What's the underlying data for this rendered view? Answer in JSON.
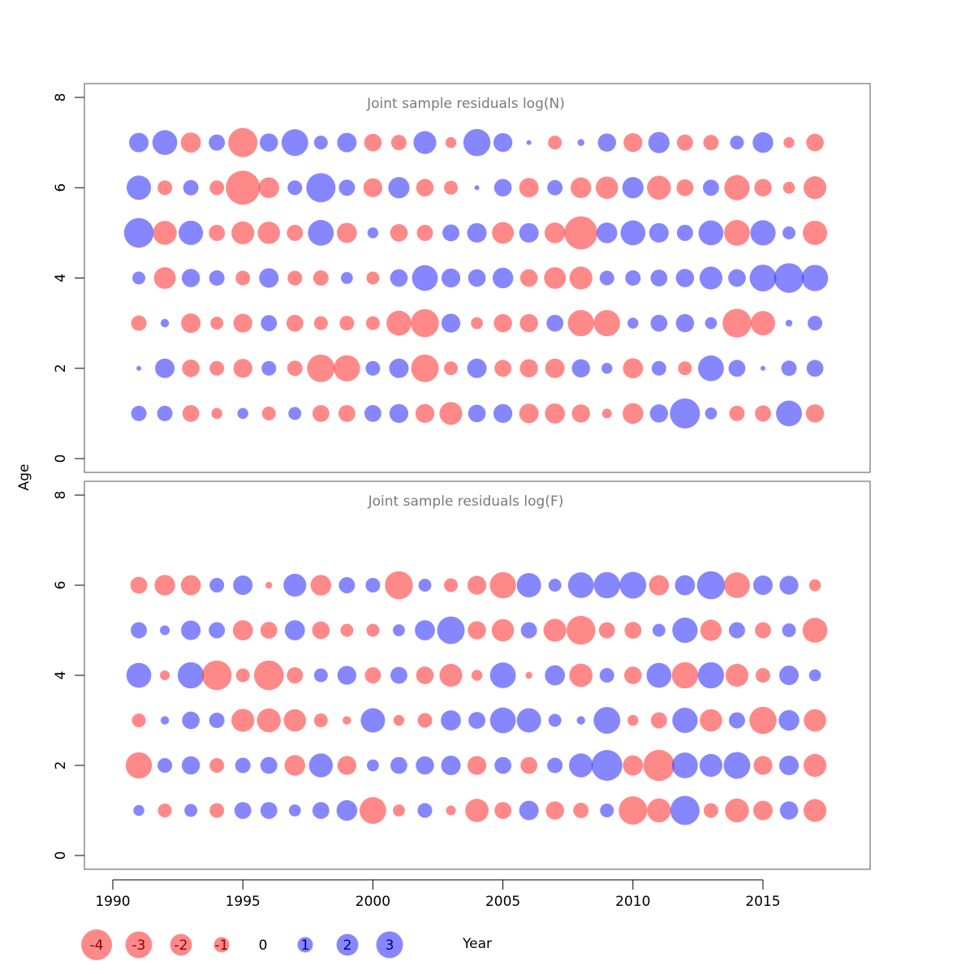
{
  "colors": {
    "negative": "#ff4040",
    "positive": "#3c3cff",
    "frame": "#555555",
    "title": "#7a7a7a"
  },
  "chart_data": [
    {
      "type": "scatter",
      "subtype": "bubble",
      "title": "Joint sample residuals log(N)",
      "xlabel": "Year",
      "ylabel": "Age",
      "xlim": [
        1989,
        2019
      ],
      "ylim": [
        -0.4,
        8.2
      ],
      "x_ticks": [
        1990,
        1995,
        2000,
        2005,
        2010,
        2015
      ],
      "y_ticks": [
        0,
        2,
        4,
        6,
        8
      ],
      "years": [
        1991,
        1992,
        1993,
        1994,
        1995,
        1996,
        1997,
        1998,
        1999,
        2000,
        2001,
        2002,
        2003,
        2004,
        2005,
        2006,
        2007,
        2008,
        2009,
        2010,
        2011,
        2012,
        2013,
        2014,
        2015,
        2016,
        2017
      ],
      "ages": [
        1,
        2,
        3,
        4,
        5,
        6,
        7
      ],
      "residuals": [
        [
          1.0,
          1.0,
          -1.2,
          -0.5,
          0.5,
          -0.8,
          0.7,
          -1.2,
          -1.2,
          1.2,
          1.5,
          -1.5,
          -2.2,
          1.3,
          1.5,
          -1.6,
          -1.7,
          -1.4,
          -0.4,
          -1.8,
          1.4,
          3.8,
          0.6,
          -1.0,
          -1.1,
          2.8,
          -1.4
        ],
        [
          0.1,
          1.6,
          -1.3,
          -0.9,
          -1.5,
          0.9,
          -1.0,
          -3.2,
          -2.9,
          0.9,
          1.6,
          -3.2,
          -0.8,
          1.6,
          -1.2,
          -1.4,
          -1.6,
          1.4,
          0.5,
          -1.7,
          0.9,
          -0.8,
          2.8,
          1.2,
          0.1,
          1.0,
          1.2
        ],
        [
          -1.0,
          0.3,
          -1.6,
          -0.7,
          -1.5,
          1.1,
          -1.2,
          -0.8,
          -0.9,
          -0.8,
          -2.6,
          -3.3,
          1.5,
          -0.6,
          -1.4,
          -1.4,
          1.2,
          -2.9,
          -2.9,
          0.5,
          1.2,
          1.4,
          0.6,
          -3.5,
          -2.5,
          0.2,
          0.9
        ],
        [
          0.7,
          -2.0,
          1.4,
          1.0,
          -0.9,
          1.6,
          -0.9,
          -1.0,
          0.6,
          -0.7,
          1.3,
          2.8,
          1.5,
          1.3,
          1.8,
          -1.3,
          -2.0,
          -2.2,
          0.9,
          1.0,
          1.2,
          1.4,
          2.2,
          1.3,
          3.0,
          3.7,
          2.9
        ],
        [
          3.7,
          -2.4,
          2.5,
          -1.1,
          -2.2,
          -2.1,
          -1.1,
          2.8,
          -1.7,
          0.5,
          -1.3,
          -1.1,
          1.2,
          1.6,
          -2.0,
          1.6,
          -1.8,
          -4.6,
          1.8,
          2.6,
          1.6,
          1.1,
          2.6,
          -2.8,
          2.7,
          0.7,
          -2.5
        ],
        [
          2.5,
          -0.9,
          1.0,
          -0.9,
          -4.9,
          -1.8,
          0.9,
          3.6,
          1.1,
          -1.5,
          1.9,
          -1.3,
          -0.8,
          0.1,
          1.3,
          -1.6,
          1.0,
          -1.8,
          -2.1,
          1.9,
          -2.4,
          -1.2,
          1.1,
          -2.7,
          -1.3,
          -0.6,
          -2.2
        ],
        [
          1.6,
          2.6,
          -1.7,
          1.1,
          -3.6,
          1.4,
          3.0,
          0.8,
          1.6,
          -1.3,
          -1.0,
          2.2,
          -0.5,
          3.1,
          1.5,
          0.1,
          -0.8,
          0.2,
          1.4,
          -1.5,
          1.9,
          -1.1,
          -1.0,
          0.8,
          1.8,
          -0.5,
          -1.3
        ]
      ]
    },
    {
      "type": "scatter",
      "subtype": "bubble",
      "title": "Joint sample residuals log(F)",
      "xlabel": "Year",
      "ylabel": "Age",
      "xlim": [
        1989,
        2019
      ],
      "ylim": [
        -0.4,
        8.2
      ],
      "x_ticks": [
        1990,
        1995,
        2000,
        2005,
        2010,
        2015
      ],
      "y_ticks": [
        0,
        2,
        4,
        6,
        8
      ],
      "years": [
        1991,
        1992,
        1993,
        1994,
        1995,
        1996,
        1997,
        1998,
        1999,
        2000,
        2001,
        2002,
        2003,
        2004,
        2005,
        2006,
        2007,
        2008,
        2009,
        2010,
        2011,
        2012,
        2013,
        2014,
        2015,
        2016,
        2017
      ],
      "ages": [
        1,
        2,
        3,
        4,
        5,
        6
      ],
      "residuals": [
        [
          0.5,
          -0.8,
          0.7,
          -0.9,
          1.2,
          1.2,
          0.6,
          1.2,
          1.8,
          -3.0,
          -0.6,
          0.9,
          -0.4,
          -2.3,
          -1.2,
          1.6,
          -1.4,
          -1.0,
          0.8,
          -3.4,
          -2.4,
          3.6,
          -0.9,
          -2.4,
          -1.6,
          1.4,
          -2.2
        ],
        [
          -2.9,
          0.9,
          1.4,
          -0.9,
          1.0,
          1.2,
          -1.8,
          2.4,
          -1.5,
          0.6,
          1.2,
          1.4,
          1.6,
          -1.5,
          1.2,
          -1.2,
          1.0,
          2.4,
          4.0,
          -1.7,
          -4.1,
          2.8,
          2.2,
          3.0,
          -1.5,
          1.6,
          -2.2
        ],
        [
          -0.8,
          0.3,
          1.3,
          1.0,
          -2.2,
          -2.4,
          -2.1,
          -0.8,
          -0.3,
          2.5,
          -0.5,
          -0.9,
          1.7,
          1.2,
          2.8,
          2.5,
          0.7,
          0.3,
          3.0,
          -0.5,
          -1.1,
          2.7,
          -2.1,
          1.1,
          -3.1,
          1.8,
          -2.1
        ],
        [
          2.6,
          -0.4,
          2.9,
          -3.7,
          -0.8,
          -3.7,
          -1.1,
          0.8,
          1.5,
          -1.1,
          1.2,
          -1.3,
          -2.2,
          -0.5,
          2.8,
          -0.2,
          1.7,
          -2.3,
          0.9,
          -1.3,
          2.6,
          -2.9,
          2.9,
          -2.2,
          -0.9,
          1.6,
          0.6
        ],
        [
          1.1,
          0.4,
          1.6,
          1.1,
          -1.7,
          -1.2,
          1.7,
          -1.3,
          -0.7,
          -0.7,
          0.6,
          1.7,
          3.2,
          -1.4,
          -2.1,
          1.1,
          -2.2,
          -3.5,
          -1.1,
          -1.2,
          0.7,
          2.7,
          -1.9,
          1.1,
          -1.1,
          0.8,
          -2.6
        ],
        [
          -1.2,
          -1.8,
          -1.7,
          0.9,
          1.6,
          -0.2,
          2.2,
          -1.8,
          1.1,
          0.9,
          -3.3,
          0.7,
          -0.8,
          -1.5,
          -2.9,
          2.5,
          0.7,
          2.8,
          2.9,
          3.0,
          -1.7,
          1.7,
          3.3,
          -2.8,
          1.6,
          1.5,
          -0.6
        ]
      ]
    }
  ],
  "legend": {
    "items": [
      {
        "label": "-4",
        "value": -4
      },
      {
        "label": "-3",
        "value": -3
      },
      {
        "label": "-2",
        "value": -2
      },
      {
        "label": "-1",
        "value": -1
      },
      {
        "label": "0",
        "value": 0
      },
      {
        "label": "1",
        "value": 1
      },
      {
        "label": "2",
        "value": 2
      },
      {
        "label": "3",
        "value": 3
      }
    ]
  }
}
